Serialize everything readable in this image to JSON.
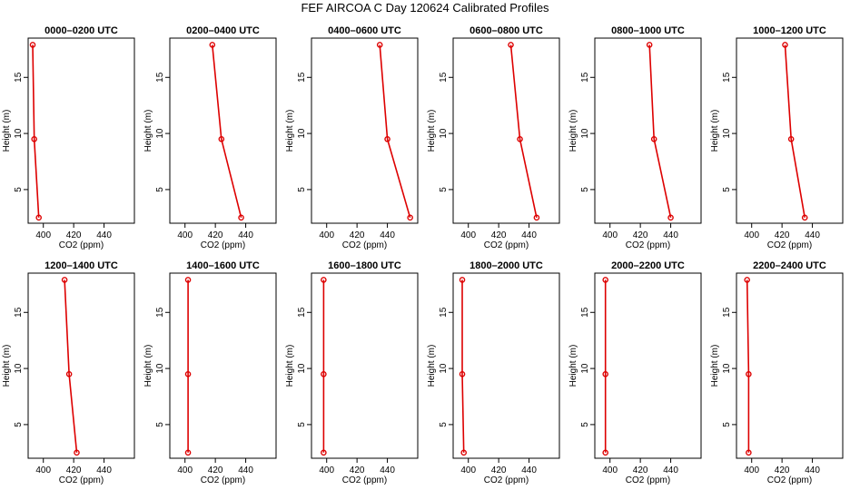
{
  "title": "FEF AIRCOA C  Day 120624  Calibrated Profiles",
  "style": {
    "line_color": "#dd0000",
    "frame_color": "#000000"
  },
  "chart_data": [
    {
      "type": "line",
      "title": "0000–0200 UTC",
      "xlabel": "CO2 (ppm)",
      "ylabel": "Height (m)",
      "xlim": [
        390,
        460
      ],
      "ylim": [
        2,
        18.5
      ],
      "xticks": [
        400,
        420,
        440
      ],
      "yticks": [
        5,
        10,
        15
      ],
      "series": [
        {
          "x": [
            397,
            394,
            393
          ],
          "y": [
            2.5,
            9.5,
            17.9
          ]
        }
      ]
    },
    {
      "type": "line",
      "title": "0200–0400 UTC",
      "xlabel": "CO2 (ppm)",
      "ylabel": "Height (m)",
      "xlim": [
        390,
        460
      ],
      "ylim": [
        2,
        18.5
      ],
      "xticks": [
        400,
        420,
        440
      ],
      "yticks": [
        5,
        10,
        15
      ],
      "series": [
        {
          "x": [
            437,
            424,
            418
          ],
          "y": [
            2.5,
            9.5,
            17.9
          ]
        }
      ]
    },
    {
      "type": "line",
      "title": "0400–0600 UTC",
      "xlabel": "CO2 (ppm)",
      "ylabel": "Height (m)",
      "xlim": [
        390,
        460
      ],
      "ylim": [
        2,
        18.5
      ],
      "xticks": [
        400,
        420,
        440
      ],
      "yticks": [
        5,
        10,
        15
      ],
      "series": [
        {
          "x": [
            455,
            440,
            435
          ],
          "y": [
            2.5,
            9.5,
            17.9
          ]
        }
      ]
    },
    {
      "type": "line",
      "title": "0600–0800 UTC",
      "xlabel": "CO2 (ppm)",
      "ylabel": "Height (m)",
      "xlim": [
        390,
        460
      ],
      "ylim": [
        2,
        18.5
      ],
      "xticks": [
        400,
        420,
        440
      ],
      "yticks": [
        5,
        10,
        15
      ],
      "series": [
        {
          "x": [
            445,
            434,
            428
          ],
          "y": [
            2.5,
            9.5,
            17.9
          ]
        }
      ]
    },
    {
      "type": "line",
      "title": "0800–1000 UTC",
      "xlabel": "CO2 (ppm)",
      "ylabel": "Height (m)",
      "xlim": [
        390,
        460
      ],
      "ylim": [
        2,
        18.5
      ],
      "xticks": [
        400,
        420,
        440
      ],
      "yticks": [
        5,
        10,
        15
      ],
      "series": [
        {
          "x": [
            440,
            429,
            426
          ],
          "y": [
            2.5,
            9.5,
            17.9
          ]
        }
      ]
    },
    {
      "type": "line",
      "title": "1000–1200 UTC",
      "xlabel": "CO2 (ppm)",
      "ylabel": "Height (m)",
      "xlim": [
        390,
        460
      ],
      "ylim": [
        2,
        18.5
      ],
      "xticks": [
        400,
        420,
        440
      ],
      "yticks": [
        5,
        10,
        15
      ],
      "series": [
        {
          "x": [
            435,
            426,
            422
          ],
          "y": [
            2.5,
            9.5,
            17.9
          ]
        }
      ]
    },
    {
      "type": "line",
      "title": "1200–1400 UTC",
      "xlabel": "CO2 (ppm)",
      "ylabel": "Height (m)",
      "xlim": [
        390,
        460
      ],
      "ylim": [
        2,
        18.5
      ],
      "xticks": [
        400,
        420,
        440
      ],
      "yticks": [
        5,
        10,
        15
      ],
      "series": [
        {
          "x": [
            422,
            417,
            414
          ],
          "y": [
            2.5,
            9.5,
            17.9
          ]
        }
      ]
    },
    {
      "type": "line",
      "title": "1400–1600 UTC",
      "xlabel": "CO2 (ppm)",
      "ylabel": "Height (m)",
      "xlim": [
        390,
        460
      ],
      "ylim": [
        2,
        18.5
      ],
      "xticks": [
        400,
        420,
        440
      ],
      "yticks": [
        5,
        10,
        15
      ],
      "series": [
        {
          "x": [
            402,
            402,
            402
          ],
          "y": [
            2.5,
            9.5,
            17.9
          ]
        }
      ]
    },
    {
      "type": "line",
      "title": "1600–1800 UTC",
      "xlabel": "CO2 (ppm)",
      "ylabel": "Height (m)",
      "xlim": [
        390,
        460
      ],
      "ylim": [
        2,
        18.5
      ],
      "xticks": [
        400,
        420,
        440
      ],
      "yticks": [
        5,
        10,
        15
      ],
      "series": [
        {
          "x": [
            398,
            398,
            398
          ],
          "y": [
            2.5,
            9.5,
            17.9
          ]
        }
      ]
    },
    {
      "type": "line",
      "title": "1800–2000 UTC",
      "xlabel": "CO2 (ppm)",
      "ylabel": "Height (m)",
      "xlim": [
        390,
        460
      ],
      "ylim": [
        2,
        18.5
      ],
      "xticks": [
        400,
        420,
        440
      ],
      "yticks": [
        5,
        10,
        15
      ],
      "series": [
        {
          "x": [
            397,
            396,
            396
          ],
          "y": [
            2.5,
            9.5,
            17.9
          ]
        }
      ]
    },
    {
      "type": "line",
      "title": "2000–2200 UTC",
      "xlabel": "CO2 (ppm)",
      "ylabel": "Height (m)",
      "xlim": [
        390,
        460
      ],
      "ylim": [
        2,
        18.5
      ],
      "xticks": [
        400,
        420,
        440
      ],
      "yticks": [
        5,
        10,
        15
      ],
      "series": [
        {
          "x": [
            397,
            397,
            397
          ],
          "y": [
            2.5,
            9.5,
            17.9
          ]
        }
      ]
    },
    {
      "type": "line",
      "title": "2200–2400 UTC",
      "xlabel": "CO2 (ppm)",
      "ylabel": "Height (m)",
      "xlim": [
        390,
        460
      ],
      "ylim": [
        2,
        18.5
      ],
      "xticks": [
        400,
        420,
        440
      ],
      "yticks": [
        5,
        10,
        15
      ],
      "series": [
        {
          "x": [
            398,
            398,
            397
          ],
          "y": [
            2.5,
            9.5,
            17.9
          ]
        }
      ]
    }
  ]
}
